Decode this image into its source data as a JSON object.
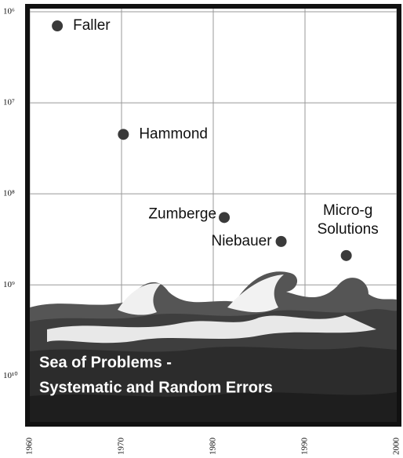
{
  "chart_data": {
    "type": "scatter",
    "log_y": true,
    "grid": true,
    "color": "#3a3a3a",
    "xlim": [
      1960,
      2000
    ],
    "xticks": [
      1960,
      1970,
      1980,
      1990,
      2000
    ],
    "ylim": [
      3e-11,
      1.15e-06
    ],
    "yticks": [
      {
        "value": 1e-06,
        "label": "10⁶"
      },
      {
        "value": 1e-07,
        "label": "10⁷"
      },
      {
        "value": 1e-08,
        "label": "10⁸"
      },
      {
        "value": 1e-09,
        "label": "10⁹"
      },
      {
        "value": 1e-10,
        "label": "10¹⁰"
      }
    ],
    "points": [
      {
        "label": [
          "Faller"
        ],
        "x": 1963,
        "y": 7e-07
      },
      {
        "label": [
          "Hammond"
        ],
        "x": 1970.2,
        "y": 4.5e-08
      },
      {
        "label": [
          "Zumberge"
        ],
        "x": 1981.2,
        "y": 5.5e-09
      },
      {
        "label": [
          "Niebauer"
        ],
        "x": 1987.4,
        "y": 3e-09
      },
      {
        "label": [
          "Micro-g",
          "Solutions"
        ],
        "x": 1994.5,
        "y": 2.1e-09
      }
    ],
    "annotations": [
      "Sea of Problems -",
      "Systematic and Random Errors"
    ]
  }
}
